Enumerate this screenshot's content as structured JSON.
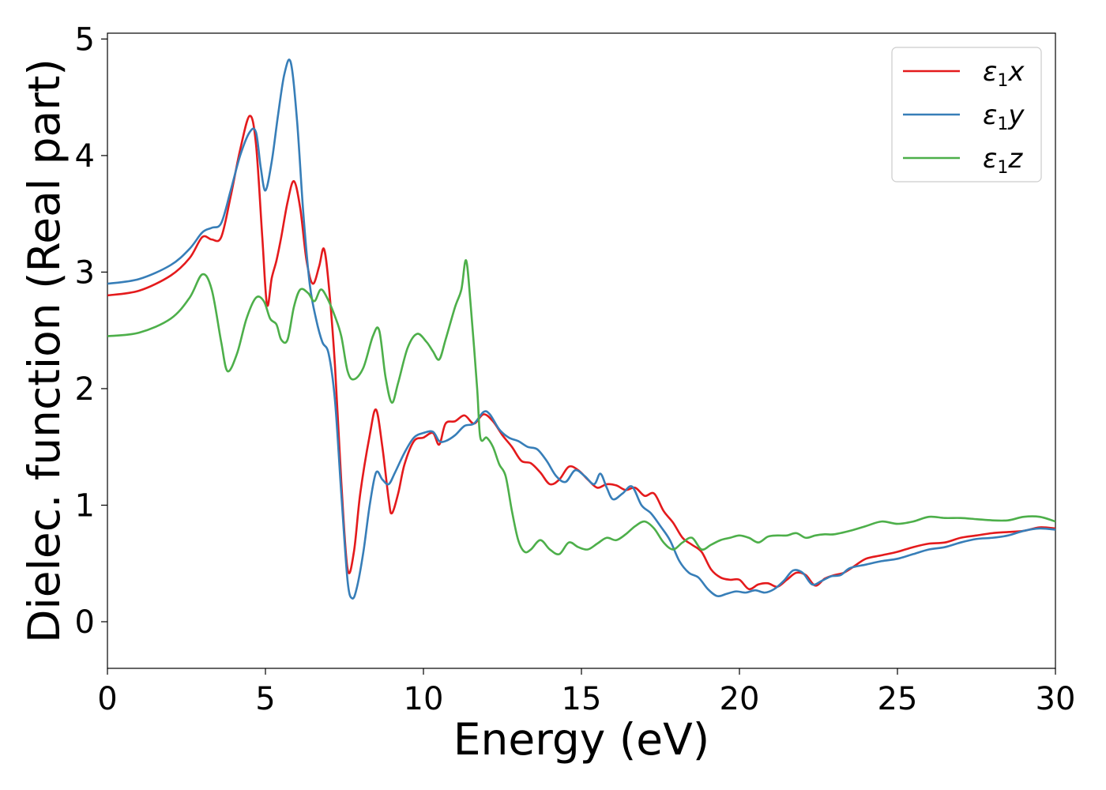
{
  "chart_data": {
    "type": "line",
    "title": "",
    "xlabel": "Energy (eV)",
    "ylabel": "Dielec. function (Real part)",
    "xlim": [
      0,
      30
    ],
    "ylim": [
      -0.4,
      5.05
    ],
    "xticks": [
      0,
      5,
      10,
      15,
      20,
      25,
      30
    ],
    "yticks": [
      0,
      1,
      2,
      3,
      4,
      5
    ],
    "grid": false,
    "legend_position": "top-right",
    "series": [
      {
        "name": "ε1x",
        "legend": {
          "base": "ε",
          "sub": "1",
          "tail": "x"
        },
        "color": "#e41a1c",
        "x": [
          0,
          1,
          2,
          2.6,
          3.0,
          3.3,
          3.6,
          3.9,
          4.2,
          4.5,
          4.7,
          4.9,
          5.05,
          5.2,
          5.35,
          5.5,
          5.7,
          5.9,
          6.1,
          6.3,
          6.5,
          6.7,
          6.85,
          7.0,
          7.2,
          7.4,
          7.6,
          7.8,
          8.0,
          8.3,
          8.5,
          8.7,
          8.9,
          9.0,
          9.2,
          9.4,
          9.7,
          10.0,
          10.3,
          10.5,
          10.7,
          11.0,
          11.3,
          11.6,
          11.9,
          12.2,
          12.5,
          12.8,
          13.1,
          13.4,
          13.7,
          14.0,
          14.3,
          14.6,
          14.9,
          15.2,
          15.5,
          15.8,
          16.1,
          16.4,
          16.7,
          17.0,
          17.3,
          17.6,
          17.9,
          18.2,
          18.5,
          18.8,
          19.1,
          19.4,
          19.7,
          20.0,
          20.3,
          20.6,
          20.9,
          21.2,
          21.5,
          21.8,
          22.1,
          22.4,
          22.7,
          23.0,
          23.3,
          23.6,
          24.0,
          24.5,
          25.0,
          25.5,
          26.0,
          26.5,
          27.0,
          27.5,
          28.0,
          28.5,
          29.0,
          29.5,
          30.0
        ],
        "y": [
          2.8,
          2.84,
          2.97,
          3.12,
          3.3,
          3.28,
          3.3,
          3.65,
          4.05,
          4.34,
          4.1,
          3.3,
          2.72,
          2.95,
          3.1,
          3.3,
          3.6,
          3.78,
          3.55,
          3.1,
          2.9,
          3.05,
          3.2,
          2.9,
          2.2,
          1.2,
          0.45,
          0.6,
          1.1,
          1.6,
          1.82,
          1.5,
          1.05,
          0.93,
          1.1,
          1.35,
          1.55,
          1.58,
          1.62,
          1.52,
          1.7,
          1.72,
          1.77,
          1.7,
          1.78,
          1.72,
          1.6,
          1.5,
          1.38,
          1.36,
          1.28,
          1.18,
          1.22,
          1.33,
          1.3,
          1.22,
          1.15,
          1.18,
          1.17,
          1.13,
          1.15,
          1.08,
          1.1,
          0.95,
          0.85,
          0.72,
          0.66,
          0.6,
          0.45,
          0.38,
          0.36,
          0.36,
          0.28,
          0.32,
          0.33,
          0.3,
          0.36,
          0.42,
          0.4,
          0.31,
          0.37,
          0.4,
          0.42,
          0.47,
          0.54,
          0.57,
          0.6,
          0.64,
          0.67,
          0.68,
          0.72,
          0.74,
          0.76,
          0.77,
          0.78,
          0.81,
          0.8
        ]
      },
      {
        "name": "ε1y",
        "legend": {
          "base": "ε",
          "sub": "1",
          "tail": "y"
        },
        "color": "#377eb8",
        "x": [
          0,
          1,
          2,
          2.6,
          3.0,
          3.3,
          3.6,
          3.9,
          4.2,
          4.5,
          4.7,
          4.85,
          5.0,
          5.2,
          5.4,
          5.6,
          5.8,
          6.0,
          6.2,
          6.4,
          6.6,
          6.8,
          7.0,
          7.2,
          7.4,
          7.6,
          7.75,
          7.9,
          8.1,
          8.3,
          8.5,
          8.7,
          8.9,
          9.1,
          9.4,
          9.7,
          10.0,
          10.3,
          10.5,
          10.7,
          11.0,
          11.3,
          11.6,
          11.9,
          12.1,
          12.4,
          12.7,
          13.0,
          13.3,
          13.6,
          13.9,
          14.2,
          14.5,
          14.8,
          15.1,
          15.4,
          15.6,
          15.8,
          16.0,
          16.3,
          16.6,
          16.9,
          17.2,
          17.5,
          17.8,
          18.1,
          18.4,
          18.7,
          19.0,
          19.3,
          19.6,
          19.9,
          20.2,
          20.5,
          20.8,
          21.1,
          21.4,
          21.7,
          22.0,
          22.3,
          22.6,
          22.9,
          23.2,
          23.5,
          24.0,
          24.5,
          25.0,
          25.5,
          26.0,
          26.5,
          27.0,
          27.5,
          28.0,
          28.5,
          29.0,
          29.5,
          30.0
        ],
        "y": [
          2.9,
          2.94,
          3.06,
          3.2,
          3.34,
          3.38,
          3.42,
          3.7,
          4.0,
          4.2,
          4.2,
          3.9,
          3.7,
          3.95,
          4.35,
          4.7,
          4.8,
          4.3,
          3.5,
          2.9,
          2.6,
          2.4,
          2.3,
          1.9,
          1.1,
          0.35,
          0.2,
          0.3,
          0.6,
          1.0,
          1.28,
          1.22,
          1.18,
          1.28,
          1.45,
          1.58,
          1.62,
          1.63,
          1.55,
          1.55,
          1.6,
          1.68,
          1.7,
          1.8,
          1.78,
          1.65,
          1.58,
          1.55,
          1.5,
          1.48,
          1.38,
          1.25,
          1.2,
          1.3,
          1.25,
          1.18,
          1.27,
          1.15,
          1.05,
          1.1,
          1.16,
          1.0,
          0.93,
          0.82,
          0.7,
          0.52,
          0.42,
          0.38,
          0.28,
          0.22,
          0.24,
          0.26,
          0.25,
          0.27,
          0.25,
          0.28,
          0.35,
          0.44,
          0.42,
          0.32,
          0.35,
          0.39,
          0.4,
          0.46,
          0.49,
          0.52,
          0.54,
          0.58,
          0.62,
          0.64,
          0.68,
          0.71,
          0.72,
          0.74,
          0.78,
          0.8,
          0.79
        ]
      },
      {
        "name": "ε1z",
        "legend": {
          "base": "ε",
          "sub": "1",
          "tail": "z"
        },
        "color": "#4daf4a",
        "x": [
          0,
          1,
          2,
          2.6,
          3.0,
          3.3,
          3.6,
          3.8,
          4.1,
          4.4,
          4.7,
          4.95,
          5.15,
          5.35,
          5.5,
          5.7,
          5.9,
          6.1,
          6.35,
          6.55,
          6.75,
          6.95,
          7.2,
          7.4,
          7.6,
          7.8,
          8.1,
          8.4,
          8.6,
          8.8,
          9.0,
          9.2,
          9.5,
          9.8,
          10.1,
          10.3,
          10.5,
          10.7,
          11.0,
          11.2,
          11.35,
          11.5,
          11.7,
          11.8,
          12.0,
          12.2,
          12.4,
          12.6,
          12.8,
          13.0,
          13.2,
          13.4,
          13.7,
          14.0,
          14.3,
          14.6,
          14.9,
          15.2,
          15.5,
          15.8,
          16.1,
          16.4,
          16.7,
          17.0,
          17.3,
          17.6,
          17.9,
          18.2,
          18.5,
          18.8,
          19.1,
          19.4,
          19.7,
          20.0,
          20.3,
          20.6,
          20.9,
          21.2,
          21.5,
          21.8,
          22.1,
          22.4,
          22.7,
          23.0,
          23.5,
          24.0,
          24.5,
          25.0,
          25.5,
          26.0,
          26.5,
          27.0,
          27.5,
          28.0,
          28.5,
          29.0,
          29.5,
          30.0
        ],
        "y": [
          2.45,
          2.48,
          2.6,
          2.78,
          2.98,
          2.85,
          2.4,
          2.15,
          2.3,
          2.6,
          2.78,
          2.75,
          2.6,
          2.55,
          2.42,
          2.42,
          2.7,
          2.85,
          2.82,
          2.75,
          2.85,
          2.78,
          2.62,
          2.45,
          2.15,
          2.08,
          2.18,
          2.45,
          2.5,
          2.1,
          1.88,
          2.05,
          2.35,
          2.47,
          2.4,
          2.32,
          2.25,
          2.42,
          2.7,
          2.85,
          3.1,
          2.7,
          2.0,
          1.58,
          1.58,
          1.5,
          1.35,
          1.25,
          0.95,
          0.7,
          0.6,
          0.62,
          0.7,
          0.62,
          0.58,
          0.68,
          0.64,
          0.62,
          0.67,
          0.72,
          0.7,
          0.75,
          0.82,
          0.86,
          0.8,
          0.68,
          0.62,
          0.68,
          0.72,
          0.62,
          0.66,
          0.7,
          0.72,
          0.74,
          0.72,
          0.68,
          0.73,
          0.74,
          0.74,
          0.76,
          0.72,
          0.74,
          0.75,
          0.75,
          0.78,
          0.82,
          0.86,
          0.84,
          0.86,
          0.9,
          0.89,
          0.89,
          0.88,
          0.87,
          0.87,
          0.9,
          0.9,
          0.86
        ]
      }
    ]
  }
}
